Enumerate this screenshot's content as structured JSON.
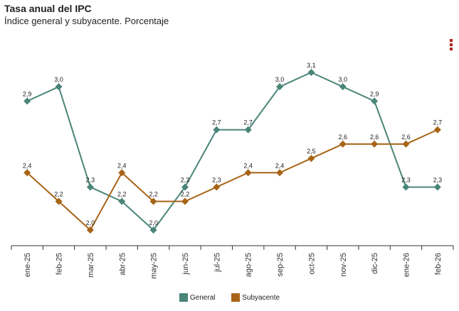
{
  "title": "Tasa anual del IPC",
  "subtitle": "Índice general y subyacente. Porcentaje",
  "menu": {
    "icon": "vertical-dots-icon"
  },
  "colors": {
    "general": "#4a8579",
    "subyacente": "#a86416",
    "axis": "#333333",
    "menu": "#b3201b"
  },
  "chart_data": {
    "type": "line",
    "title": "Tasa anual del IPC",
    "subtitle": "Índice general y subyacente. Porcentaje",
    "xlabel": "",
    "ylabel": "",
    "ylim": [
      2.0,
      3.1
    ],
    "grid": false,
    "legend_position": "bottom-center",
    "categories": [
      "ene-25",
      "feb-25",
      "mar-25",
      "abr-25",
      "may-25",
      "jun-25",
      "jul-25",
      "ago-25",
      "sep-25",
      "oct-25",
      "nov-25",
      "dic-25",
      "ene-26",
      "feb-26"
    ],
    "series": [
      {
        "key": "general",
        "name": "General",
        "values": [
          2.9,
          3.0,
          2.3,
          2.2,
          2.0,
          2.3,
          2.7,
          2.7,
          3.0,
          3.1,
          3.0,
          2.9,
          2.3,
          2.3
        ],
        "labels": [
          "2,9",
          "3,0",
          "2,3",
          "2,2",
          "2,0",
          "2,3",
          "2,7",
          "2,7",
          "3,0",
          "3,1",
          "3,0",
          "2,9",
          "2,3",
          "2,3"
        ]
      },
      {
        "key": "subyacente",
        "name": "Subyacente",
        "values": [
          2.4,
          2.2,
          2.0,
          2.4,
          2.2,
          2.2,
          2.3,
          2.4,
          2.4,
          2.5,
          2.6,
          2.6,
          2.6,
          2.7
        ],
        "labels": [
          "2,4",
          "2,2",
          "2,0",
          "2,4",
          "2,2",
          "2,2",
          "2,3",
          "2,4",
          "2,4",
          "2,5",
          "2,6",
          "2,6",
          "2,6",
          "2,7"
        ]
      }
    ]
  }
}
